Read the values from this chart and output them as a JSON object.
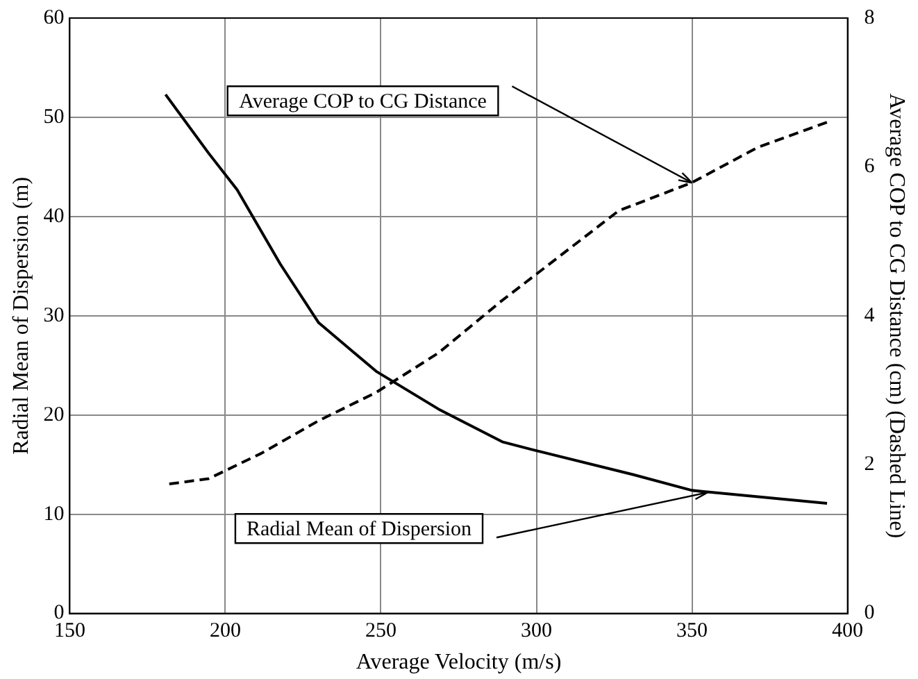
{
  "chart_data": {
    "type": "line",
    "xlabel": "Average Velocity (m/s)",
    "ylabel": "Radial Mean of Dispersion (m)",
    "y2label": "Average COP to CG Distance (cm) (Dashed Line)",
    "xlim": [
      150,
      400
    ],
    "xticks": [
      150,
      200,
      250,
      300,
      350,
      400
    ],
    "ylim": [
      0,
      60
    ],
    "yticks": [
      0,
      10,
      20,
      30,
      40,
      50,
      60
    ],
    "y2lim": [
      0,
      8
    ],
    "y2ticks": [
      0,
      2,
      4,
      6,
      8
    ],
    "grid": true,
    "legend": false,
    "marker": "none",
    "series": [
      {
        "color": "#000000",
        "line_style": "solid",
        "x": [
          180.8,
          194.6,
          203.8,
          217.7,
          230,
          248.5,
          268.5,
          289,
          300,
          331,
          350,
          393.4
        ],
        "values": [
          52.3,
          46.4,
          42.7,
          35.2,
          29.3,
          24.4,
          20.6,
          17.3,
          16.4,
          14.0,
          12.4,
          11.1
        ]
      },
      {
        "color": "#000000",
        "line_style": "dashed",
        "axis": "y2",
        "x": [
          182,
          194.6,
          211.5,
          230,
          248.5,
          268.5,
          288.5,
          300,
          326.4,
          350,
          371,
          393.4
        ],
        "values": [
          1.74,
          1.81,
          2.15,
          2.59,
          2.97,
          3.5,
          4.19,
          4.56,
          5.41,
          5.79,
          6.26,
          6.6
        ]
      }
    ],
    "annotations": [
      {
        "text": "Average COP to CG Distance",
        "x": 350,
        "y": 43.4
      },
      {
        "text": "Radial Mean of Dispersion",
        "x": 355,
        "y": 12.2
      }
    ]
  }
}
